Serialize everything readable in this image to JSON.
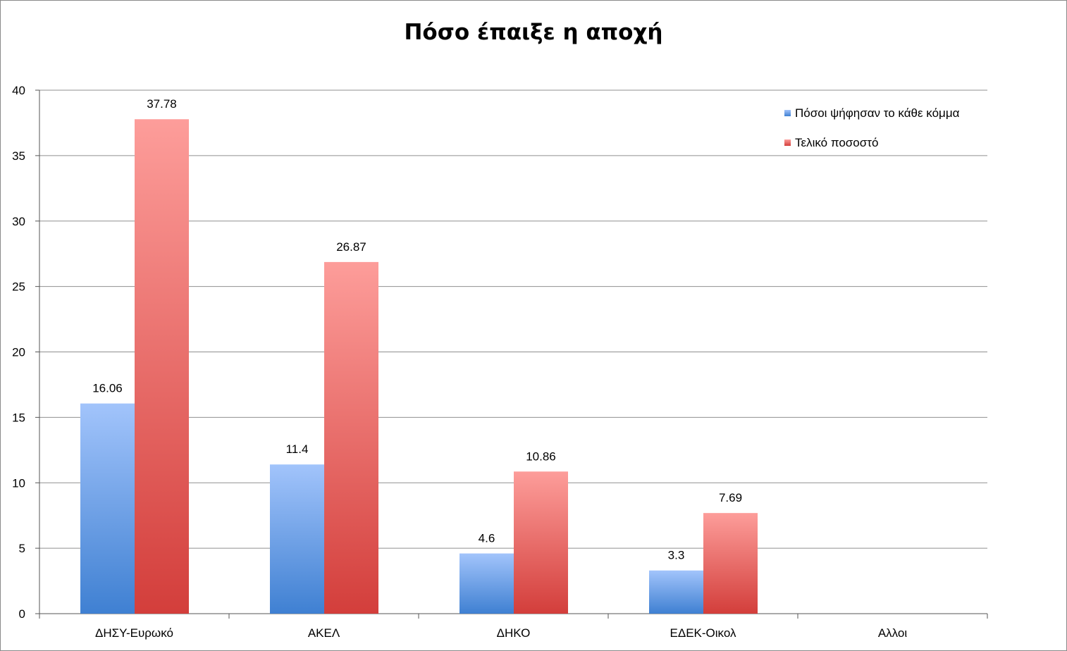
{
  "chart_data": {
    "type": "bar",
    "title": "Πόσο έπαιξε η αποχή",
    "xlabel": "",
    "ylabel": "",
    "categories": [
      "ΔΗΣΥ-Ευρωκό",
      "ΑΚΕΛ",
      "ΔΗΚΟ",
      "ΕΔΕΚ-Οικολ",
      "Αλλοι"
    ],
    "series": [
      {
        "name": "Πόσοι ψήφησαν το κάθε κόμμα",
        "values": [
          16.06,
          11.4,
          4.6,
          3.3,
          null
        ],
        "color_top": "#a2c4fb",
        "color_bottom": "#3f80d2"
      },
      {
        "name": "Τελικό ποσοστό",
        "values": [
          37.78,
          26.87,
          10.86,
          7.69,
          null
        ],
        "color_top": "#fd9d9a",
        "color_bottom": "#d33e3b"
      }
    ],
    "ylim": [
      0,
      40
    ],
    "yticks": [
      0,
      5,
      10,
      15,
      20,
      25,
      30,
      35,
      40
    ],
    "grid": true,
    "legend_position": "top-right",
    "gridline_color": "#8f8f8f"
  }
}
